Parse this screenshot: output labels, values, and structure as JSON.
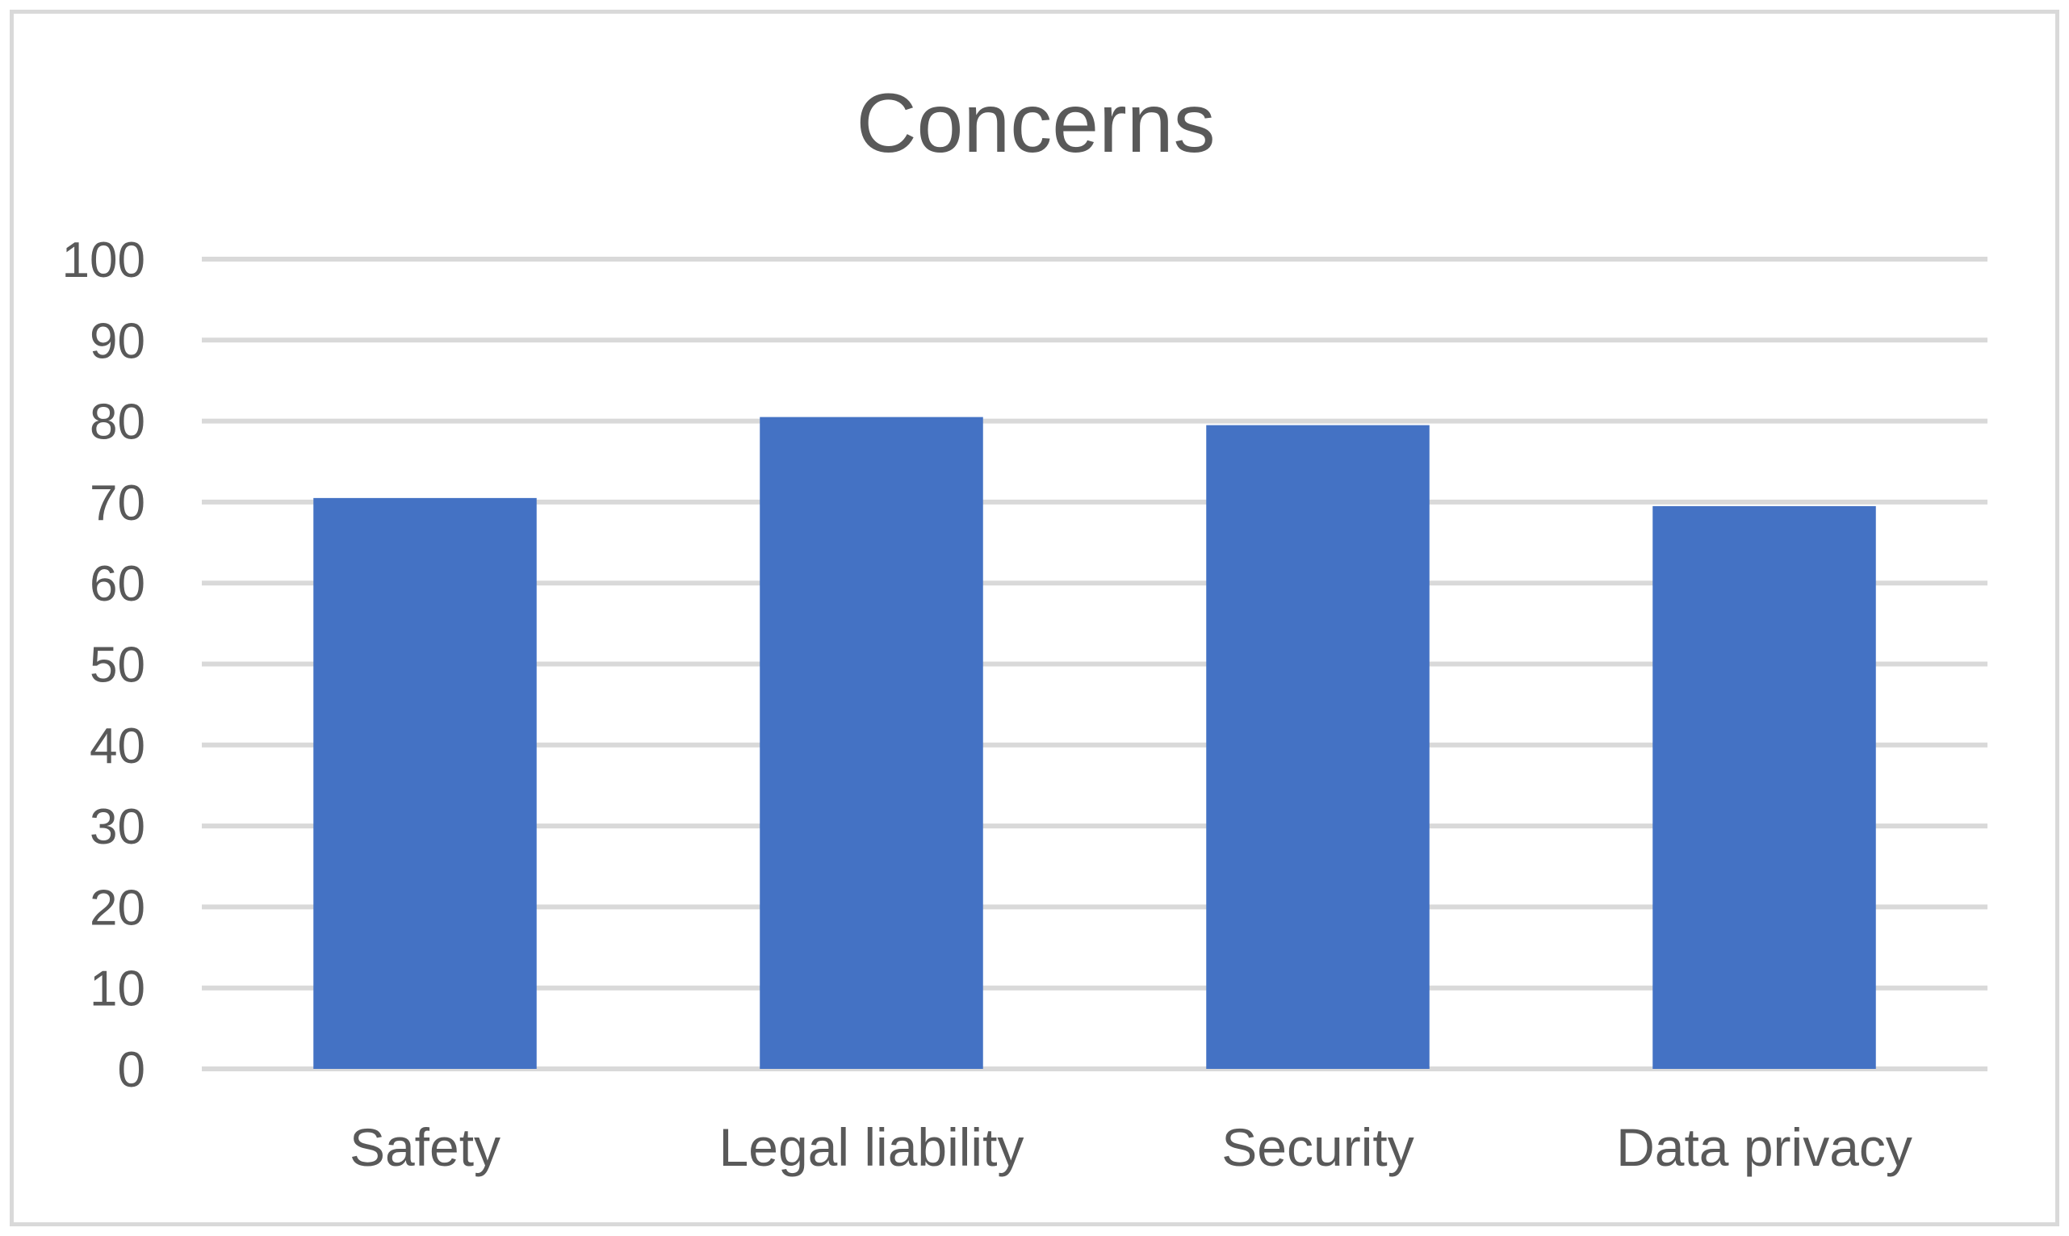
{
  "chart_data": {
    "type": "bar",
    "title": "Concerns",
    "categories": [
      "Safety",
      "Legal liability",
      "Security",
      "Data privacy"
    ],
    "values": [
      70.5,
      80.5,
      79.5,
      69.5
    ],
    "xlabel": "",
    "ylabel": "",
    "ylim": [
      0,
      100
    ],
    "yticks": [
      "0",
      "10",
      "20",
      "30",
      "40",
      "50",
      "60",
      "70",
      "80",
      "90",
      "100"
    ],
    "grid": true,
    "legend": "none",
    "bar_color": "#4472C4"
  }
}
